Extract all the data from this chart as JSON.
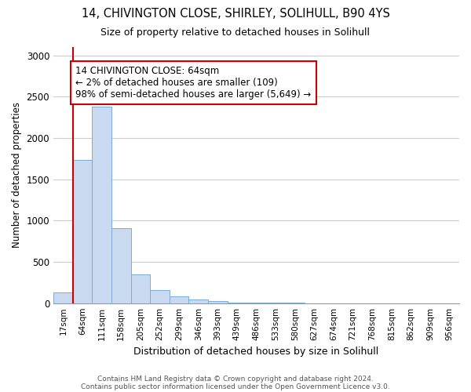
{
  "title1": "14, CHIVINGTON CLOSE, SHIRLEY, SOLIHULL, B90 4YS",
  "title2": "Size of property relative to detached houses in Solihull",
  "xlabel": "Distribution of detached houses by size in Solihull",
  "ylabel": "Number of detached properties",
  "categories": [
    "17sqm",
    "64sqm",
    "111sqm",
    "158sqm",
    "205sqm",
    "252sqm",
    "299sqm",
    "346sqm",
    "393sqm",
    "439sqm",
    "486sqm",
    "533sqm",
    "580sqm",
    "627sqm",
    "674sqm",
    "721sqm",
    "768sqm",
    "815sqm",
    "862sqm",
    "909sqm",
    "956sqm"
  ],
  "values": [
    130,
    1730,
    2380,
    910,
    350,
    155,
    80,
    45,
    25,
    10,
    5,
    3,
    2,
    0,
    0,
    0,
    0,
    0,
    0,
    0,
    0
  ],
  "bar_color": "#c8d9f0",
  "bar_edge_color": "#7aadd4",
  "highlight_line_color": "#cc0000",
  "annotation_line1": "14 CHIVINGTON CLOSE: 64sqm",
  "annotation_line2": "← 2% of detached houses are smaller (109)",
  "annotation_line3": "98% of semi-detached houses are larger (5,649) →",
  "annotation_box_color": "#ffffff",
  "annotation_box_edge": "#cc0000",
  "ylim": [
    0,
    3100
  ],
  "yticks": [
    0,
    500,
    1000,
    1500,
    2000,
    2500,
    3000
  ],
  "footer1": "Contains HM Land Registry data © Crown copyright and database right 2024.",
  "footer2": "Contains public sector information licensed under the Open Government Licence v3.0.",
  "bg_color": "#ffffff",
  "grid_color": "#cccccc",
  "highlight_bar_index": 1
}
